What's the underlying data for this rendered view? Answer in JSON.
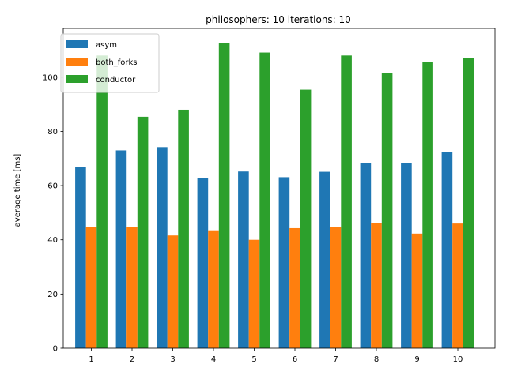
{
  "chart_data": {
    "type": "bar",
    "title": "philosophers: 10   iterations: 10",
    "xlabel": "",
    "ylabel": "average time [ms]",
    "categories": [
      "1",
      "2",
      "3",
      "4",
      "5",
      "6",
      "7",
      "8",
      "9",
      "10"
    ],
    "ylim": [
      0,
      118
    ],
    "yticks": [
      0,
      20,
      40,
      60,
      80,
      100
    ],
    "grid": false,
    "legend_position": "top-left",
    "series": [
      {
        "name": "asym",
        "color": "#1f77b4",
        "values": [
          66.9,
          73.0,
          74.2,
          62.8,
          65.2,
          63.1,
          65.1,
          68.2,
          68.4,
          72.4
        ]
      },
      {
        "name": "both_forks",
        "color": "#ff7f0e",
        "values": [
          44.6,
          44.6,
          41.6,
          43.5,
          40.0,
          44.3,
          44.6,
          46.3,
          42.3,
          46.0
        ]
      },
      {
        "name": "conductor",
        "color": "#2ca02c",
        "values": [
          108.0,
          85.4,
          88.0,
          112.6,
          109.1,
          95.4,
          108.0,
          101.4,
          105.6,
          107.0
        ]
      }
    ]
  }
}
